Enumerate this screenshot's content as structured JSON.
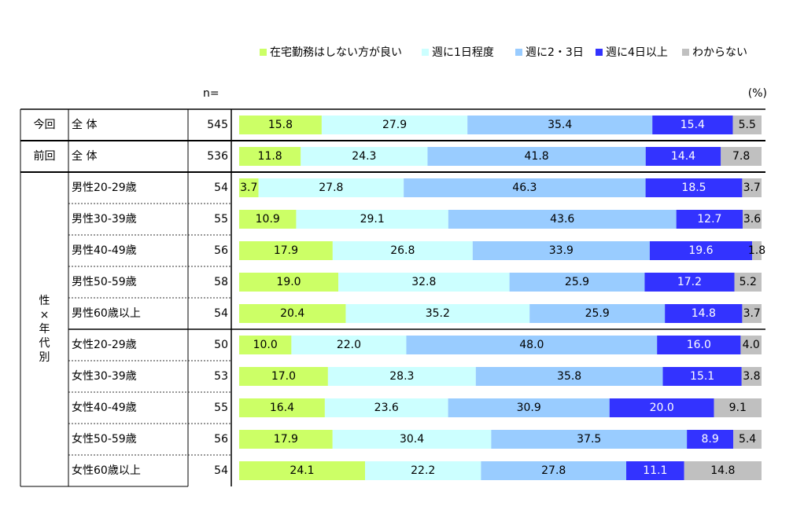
{
  "chart_data": {
    "type": "bar",
    "orientation": "horizontal-stacked-100",
    "n_label": "n=",
    "unit_label": "(%)",
    "legend_placement": "top",
    "series": [
      {
        "name": "在宅勤務はしない方が良い",
        "color": "#ccff66"
      },
      {
        "name": "週に1日程度",
        "color": "#ccffff"
      },
      {
        "name": "週に2・3日",
        "color": "#99ccff"
      },
      {
        "name": "週に4日以上",
        "color": "#3333ff"
      },
      {
        "name": "わからない",
        "color": "#c0c0c0"
      }
    ],
    "groups": [
      {
        "label": "今回",
        "start": 0,
        "count": 1
      },
      {
        "label": "前回",
        "start": 1,
        "count": 1
      },
      {
        "label": "性\n×\n年\n代\n別",
        "start": 2,
        "count": 10
      }
    ],
    "rows": [
      {
        "label": "全 体",
        "n": "545",
        "values": [
          15.8,
          27.9,
          35.4,
          15.4,
          5.5
        ]
      },
      {
        "label": "全 体",
        "n": "536",
        "values": [
          11.8,
          24.3,
          41.8,
          14.4,
          7.8
        ]
      },
      {
        "label": "男性20-29歳",
        "n": "54",
        "values": [
          3.7,
          27.8,
          46.3,
          18.5,
          3.7
        ]
      },
      {
        "label": "男性30-39歳",
        "n": "55",
        "values": [
          10.9,
          29.1,
          43.6,
          12.7,
          3.6
        ]
      },
      {
        "label": "男性40-49歳",
        "n": "56",
        "values": [
          17.9,
          26.8,
          33.9,
          19.6,
          1.8
        ]
      },
      {
        "label": "男性50-59歳",
        "n": "58",
        "values": [
          19.0,
          32.8,
          25.9,
          17.2,
          5.2
        ]
      },
      {
        "label": "男性60歳以上",
        "n": "54",
        "values": [
          20.4,
          35.2,
          25.9,
          14.8,
          3.7
        ]
      },
      {
        "label": "女性20-29歳",
        "n": "50",
        "values": [
          10.0,
          22.0,
          48.0,
          16.0,
          4.0
        ]
      },
      {
        "label": "女性30-39歳",
        "n": "53",
        "values": [
          17.0,
          28.3,
          35.8,
          15.1,
          3.8
        ]
      },
      {
        "label": "女性40-49歳",
        "n": "55",
        "values": [
          16.4,
          23.6,
          30.9,
          20.0,
          9.1
        ]
      },
      {
        "label": "女性50-59歳",
        "n": "56",
        "values": [
          17.9,
          30.4,
          37.5,
          8.9,
          5.4
        ]
      },
      {
        "label": "女性60歳以上",
        "n": "54",
        "values": [
          24.1,
          22.2,
          27.8,
          11.1,
          14.8
        ]
      }
    ]
  }
}
